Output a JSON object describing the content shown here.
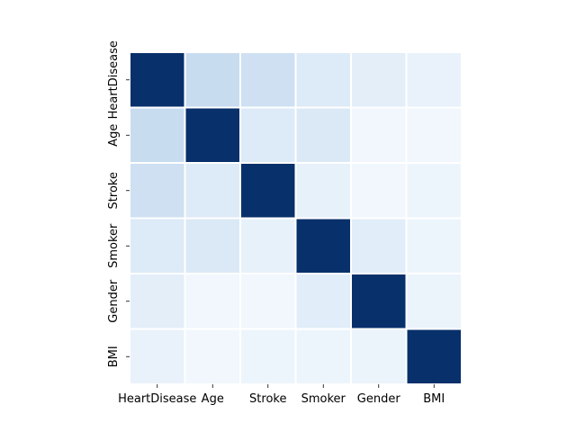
{
  "chart_data": {
    "type": "heatmap",
    "title": "",
    "xlabel": "",
    "ylabel": "",
    "rows": [
      "HeartDisease",
      "Age",
      "Stroke",
      "Smoker",
      "Gender",
      "BMI"
    ],
    "columns": [
      "HeartDisease",
      "Age",
      "Stroke",
      "Smoker",
      "Gender",
      "BMI"
    ],
    "values": [
      [
        1.0,
        0.24,
        0.21,
        0.13,
        0.1,
        0.07
      ],
      [
        0.24,
        1.0,
        0.13,
        0.14,
        0.03,
        0.03
      ],
      [
        0.21,
        0.13,
        1.0,
        0.08,
        0.03,
        0.05
      ],
      [
        0.13,
        0.14,
        0.08,
        1.0,
        0.11,
        0.05
      ],
      [
        0.1,
        0.03,
        0.03,
        0.11,
        1.0,
        0.06
      ],
      [
        0.07,
        0.03,
        0.05,
        0.05,
        0.06,
        1.0
      ]
    ],
    "vmin": 0,
    "vmax": 1,
    "colormap": "Blues",
    "colorbar": false,
    "grid_lines": "white"
  }
}
